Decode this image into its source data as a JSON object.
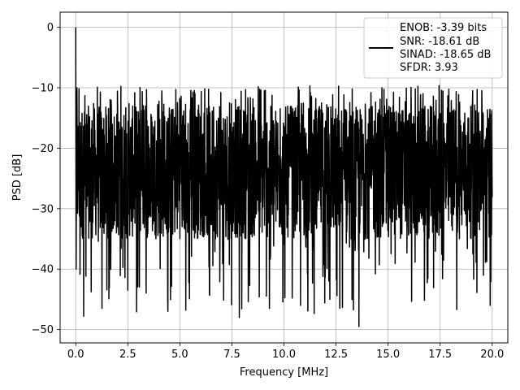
{
  "chart_data": {
    "type": "line",
    "xlabel": "Frequency [MHz]",
    "ylabel": "PSD [dB]",
    "xlim": [
      -0.75,
      20.75
    ],
    "ylim": [
      -52.2,
      2.5
    ],
    "x_ticks": [
      0.0,
      2.5,
      5.0,
      7.5,
      10.0,
      12.5,
      15.0,
      17.5,
      20.0
    ],
    "x_tick_labels": [
      "0.0",
      "2.5",
      "5.0",
      "7.5",
      "10.0",
      "12.5",
      "15.0",
      "17.5",
      "20.0"
    ],
    "y_ticks": [
      0,
      -10,
      -20,
      -30,
      -40,
      -50
    ],
    "y_tick_labels": [
      "0",
      "−10",
      "−20",
      "−30",
      "−40",
      "−50"
    ],
    "grid": true,
    "legend_position": "top-right",
    "legend": [
      "ENOB: -3.39 bits",
      "SNR: -18.61 dB",
      "SINAD: -18.65 dB",
      "SFDR: 3.93"
    ],
    "series": [
      {
        "color": "#000000",
        "x_range": [
          0.0,
          20.0
        ],
        "n_points": 2048,
        "dc_peak_db": 0.0,
        "noise_floor_mean_db": -22.5,
        "noise_band_db": [
          -35,
          -13
        ],
        "max_spur_db": -9.6,
        "min_dip_db": -49.5,
        "notable_points": [
          {
            "x": 0.0,
            "y": 0.0
          },
          {
            "x": 0.06,
            "y": -10.0
          },
          {
            "x": 0.38,
            "y": -47.8
          },
          {
            "x": 1.26,
            "y": -46.5
          },
          {
            "x": 2.5,
            "y": -43.5
          },
          {
            "x": 7.86,
            "y": -48.0
          },
          {
            "x": 9.3,
            "y": -46.5
          },
          {
            "x": 10.8,
            "y": -46.0
          },
          {
            "x": 11.25,
            "y": -9.7
          },
          {
            "x": 12.2,
            "y": -45.0
          },
          {
            "x": 13.6,
            "y": -49.5
          },
          {
            "x": 19.9,
            "y": -46.0
          }
        ]
      }
    ]
  }
}
